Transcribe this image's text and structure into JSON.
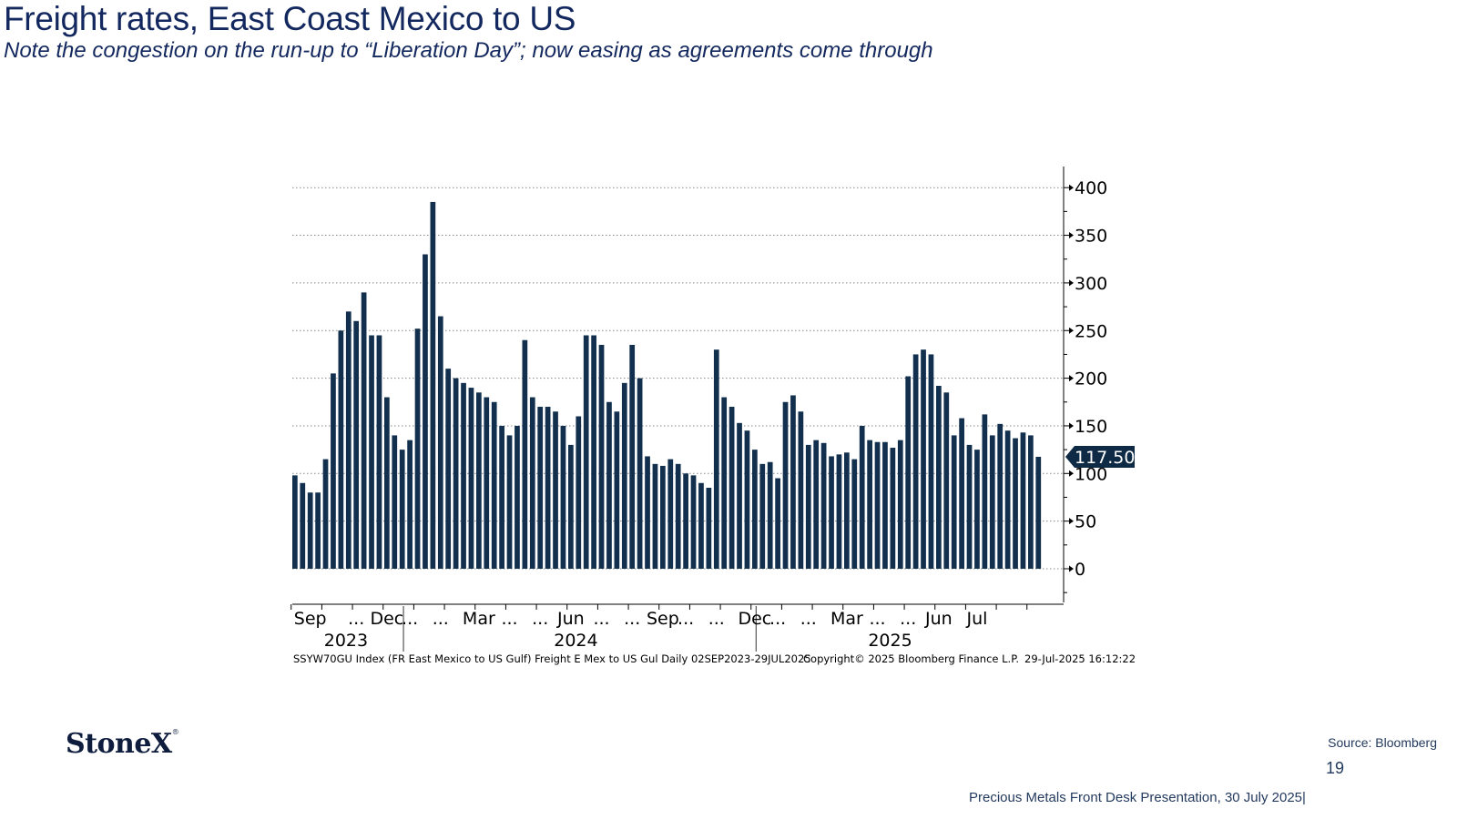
{
  "page": {
    "title": "Freight rates, East Coast Mexico to US",
    "subtitle": "Note the congestion on the run-up to “Liberation Day”; now easing as agreements come through",
    "source": "Source: Bloomberg",
    "page_number": "19",
    "footer": "Precious Metals Front Desk Presentation, 30 July 2025|",
    "logo_text": "StoneX",
    "logo_mark": "®"
  },
  "colors": {
    "bar": "#12304e",
    "text_dark": "#13285e",
    "grid": "#9a9a9a"
  },
  "chart_data": {
    "type": "bar",
    "series_name": "SSYW70GU Index (FR East Mexico to US Gulf) Freight E Mex to US Gul  Daily 02SEP2023-29JUL2025",
    "copyright": "Copyright© 2025 Bloomberg Finance L.P.",
    "timestamp": "29-Jul-2025 16:12:22",
    "last_value_label": "117.50",
    "last_value": 117.5,
    "ylim": [
      -40,
      420
    ],
    "yticks": [
      0,
      50,
      100,
      150,
      200,
      250,
      300,
      350,
      400
    ],
    "x_labels": [
      {
        "text": "Sep",
        "index": 2
      },
      {
        "text": "...",
        "index": 8
      },
      {
        "text": "Dec",
        "index": 12
      },
      {
        "text": "...",
        "index": 15
      },
      {
        "text": "...",
        "index": 19
      },
      {
        "text": "Mar",
        "index": 24
      },
      {
        "text": "...",
        "index": 28
      },
      {
        "text": "...",
        "index": 32
      },
      {
        "text": "Jun",
        "index": 36
      },
      {
        "text": "...",
        "index": 40
      },
      {
        "text": "...",
        "index": 44
      },
      {
        "text": "Sep",
        "index": 48
      },
      {
        "text": "...",
        "index": 51
      },
      {
        "text": "...",
        "index": 55
      },
      {
        "text": "Dec",
        "index": 60
      },
      {
        "text": "...",
        "index": 63
      },
      {
        "text": "...",
        "index": 67
      },
      {
        "text": "Mar",
        "index": 72
      },
      {
        "text": "...",
        "index": 76
      },
      {
        "text": "...",
        "index": 80
      },
      {
        "text": "Jun",
        "index": 84
      },
      {
        "text": "Jul",
        "index": 89
      }
    ],
    "years": [
      {
        "text": "2023",
        "index": 7
      },
      {
        "text": "2024",
        "index": 37
      },
      {
        "text": "2025",
        "index": 78
      }
    ],
    "year_dividers": [
      14.5,
      60.5
    ],
    "values": [
      98,
      90,
      80,
      80,
      115,
      205,
      250,
      270,
      260,
      290,
      245,
      245,
      180,
      140,
      125,
      135,
      252,
      330,
      385,
      265,
      210,
      200,
      195,
      190,
      185,
      180,
      175,
      150,
      140,
      150,
      240,
      180,
      170,
      170,
      165,
      150,
      130,
      160,
      245,
      245,
      235,
      175,
      165,
      195,
      235,
      200,
      118,
      110,
      108,
      115,
      110,
      100,
      98,
      90,
      85,
      230,
      180,
      170,
      153,
      145,
      125,
      110,
      112,
      95,
      175,
      182,
      165,
      130,
      135,
      132,
      118,
      120,
      122,
      115,
      150,
      135,
      133,
      133,
      127,
      135,
      202,
      225,
      230,
      225,
      192,
      185,
      140,
      158,
      130,
      125,
      162,
      140,
      152,
      145,
      137,
      143,
      140,
      117.5
    ]
  }
}
